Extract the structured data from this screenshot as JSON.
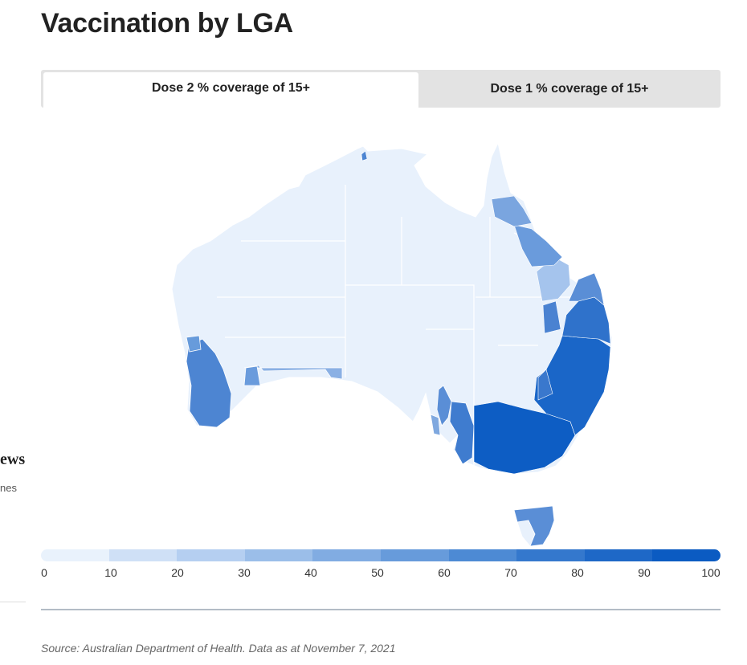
{
  "title": "Vaccination by LGA",
  "tabs": [
    {
      "label": "Dose 2 % coverage of 15+",
      "active": true
    },
    {
      "label": "Dose 1 % coverage of 15+",
      "active": false
    }
  ],
  "sidebar_fragment": {
    "heading": "ews",
    "subtext": "nes"
  },
  "legend": {
    "ticks": [
      "0",
      "10",
      "20",
      "30",
      "40",
      "50",
      "60",
      "70",
      "80",
      "90",
      "100"
    ],
    "colors": [
      "#e9f2fc",
      "#cfe0f6",
      "#b5cff1",
      "#9bbee9",
      "#81ace2",
      "#679bdb",
      "#4d8ad4",
      "#3478cd",
      "#1e68c7",
      "#0b5bc2"
    ]
  },
  "map": {
    "regions": [
      {
        "name": "Western Australia interior",
        "coverage_band": "0-10"
      },
      {
        "name": "Northern Territory",
        "coverage_band": "0-10"
      },
      {
        "name": "South Australia outback",
        "coverage_band": "0-10"
      },
      {
        "name": "Queensland interior",
        "coverage_band": "0-10"
      },
      {
        "name": "Perth and south-west WA",
        "coverage_band": "50-70"
      },
      {
        "name": "Central WA strip",
        "coverage_band": "40-60"
      },
      {
        "name": "Adelaide and south-east SA",
        "coverage_band": "60-80"
      },
      {
        "name": "Far north Queensland coast",
        "coverage_band": "40-60"
      },
      {
        "name": "South-east Queensland",
        "coverage_band": "70-90"
      },
      {
        "name": "New South Wales",
        "coverage_band": "80-100"
      },
      {
        "name": "Victoria",
        "coverage_band": "90-100"
      },
      {
        "name": "Tasmania",
        "coverage_band": "60-80"
      }
    ]
  },
  "source": "Source: Australian Department of Health. Data as at November 7, 2021"
}
